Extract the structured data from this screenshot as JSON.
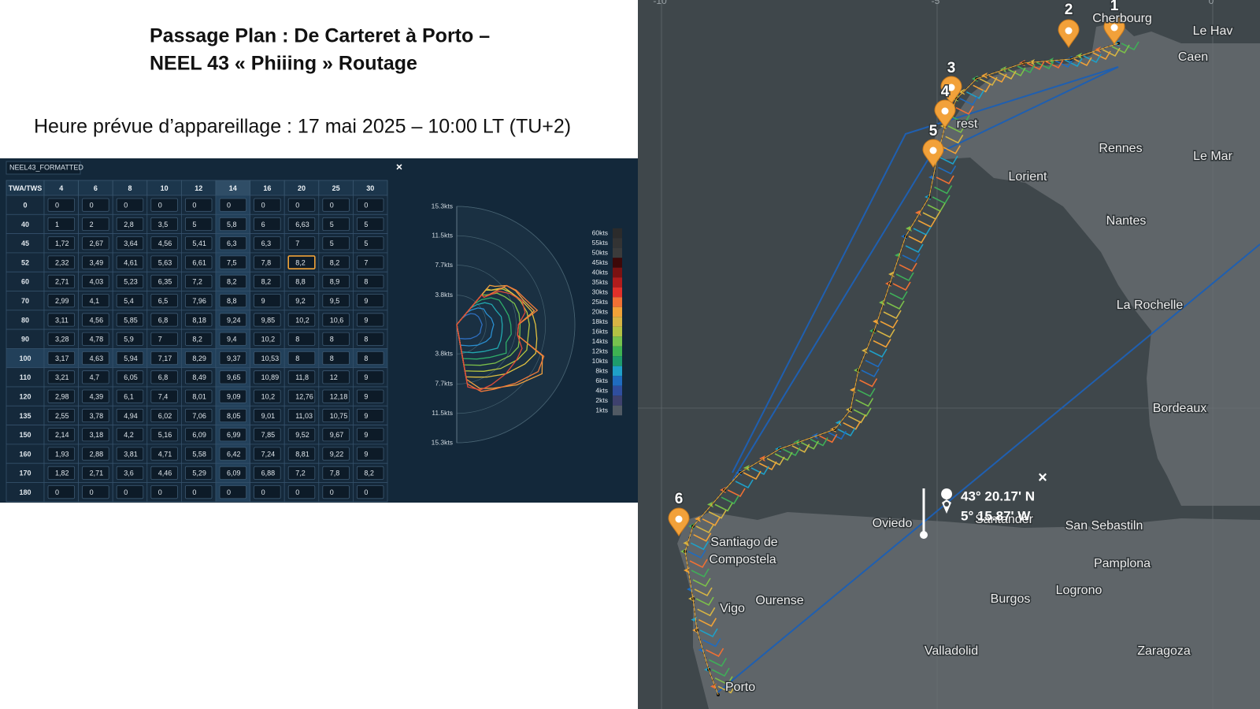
{
  "header": {
    "title_lines": [
      "Passage Plan : De Carteret à Porto –",
      "NEEL 43 « Phiiing » Routage"
    ],
    "subtitle": "Heure prévue d’appareillage : 17 mai 2025 – 10:00 LT (TU+2)"
  },
  "polar_panel": {
    "title": "NEEL43_FORMATTED",
    "close": "×",
    "table": {
      "header": [
        "TWA/TWS",
        "4",
        "6",
        "8",
        "10",
        "12",
        "14",
        "16",
        "20",
        "25",
        "30"
      ],
      "rows": [
        [
          "0",
          "0",
          "0",
          "0",
          "0",
          "0",
          "0",
          "0",
          "0",
          "0",
          "0"
        ],
        [
          "40",
          "1",
          "2",
          "2,8",
          "3,5",
          "5",
          "5,8",
          "6",
          "6,63",
          "5",
          "5"
        ],
        [
          "45",
          "1,72",
          "2,67",
          "3,64",
          "4,56",
          "5,41",
          "6,3",
          "6,3",
          "7",
          "5",
          "5"
        ],
        [
          "52",
          "2,32",
          "3,49",
          "4,61",
          "5,63",
          "6,61",
          "7,5",
          "7,8",
          "8,2",
          "8,2",
          "7"
        ],
        [
          "60",
          "2,71",
          "4,03",
          "5,23",
          "6,35",
          "7,2",
          "8,2",
          "8,2",
          "8,8",
          "8,9",
          "8"
        ],
        [
          "70",
          "2,99",
          "4,1",
          "5,4",
          "6,5",
          "7,96",
          "8,8",
          "9",
          "9,2",
          "9,5",
          "9"
        ],
        [
          "80",
          "3,11",
          "4,56",
          "5,85",
          "6,8",
          "8,18",
          "9,24",
          "9,85",
          "10,2",
          "10,6",
          "9"
        ],
        [
          "90",
          "3,28",
          "4,78",
          "5,9",
          "7",
          "8,2",
          "9,4",
          "10,2",
          "8",
          "8",
          "8"
        ],
        [
          "100",
          "3,17",
          "4,63",
          "5,94",
          "7,17",
          "8,29",
          "9,37",
          "10,53",
          "8",
          "8",
          "8"
        ],
        [
          "110",
          "3,21",
          "4,7",
          "6,05",
          "6,8",
          "8,49",
          "9,65",
          "10,89",
          "11,8",
          "12",
          "9"
        ],
        [
          "120",
          "2,98",
          "4,39",
          "6,1",
          "7,4",
          "8,01",
          "9,09",
          "10,2",
          "12,76",
          "12,18",
          "9"
        ],
        [
          "135",
          "2,55",
          "3,78",
          "4,94",
          "6,02",
          "7,06",
          "8,05",
          "9,01",
          "11,03",
          "10,75",
          "9"
        ],
        [
          "150",
          "2,14",
          "3,18",
          "4,2",
          "5,16",
          "6,09",
          "6,99",
          "7,85",
          "9,52",
          "9,67",
          "9"
        ],
        [
          "160",
          "1,93",
          "2,88",
          "3,81",
          "4,71",
          "5,58",
          "6,42",
          "7,24",
          "8,81",
          "9,22",
          "9"
        ],
        [
          "170",
          "1,82",
          "2,71",
          "3,6",
          "4,46",
          "5,29",
          "6,09",
          "6,88",
          "7,2",
          "7,8",
          "8,2"
        ],
        [
          "180",
          "0",
          "0",
          "0",
          "0",
          "0",
          "0",
          "0",
          "0",
          "0",
          "0"
        ]
      ]
    },
    "polar_chart": {
      "radius_labels": [
        "15.3kts",
        "11.5kts",
        "7.7kts",
        "3.8kts",
        "3.8kts",
        "7.7kts",
        "11.5kts",
        "15.3kts"
      ],
      "curve_colors": [
        "#2f6fc0",
        "#2a8fd0",
        "#22a8b0",
        "#2fae6a",
        "#7cc04a",
        "#b8c840",
        "#e0c040",
        "#f0a040",
        "#f07a3a",
        "#e04a3a"
      ]
    },
    "legend": {
      "items": [
        {
          "label": "60kts",
          "color": "#2b2b2b"
        },
        {
          "label": "55kts",
          "color": "#333333"
        },
        {
          "label": "50kts",
          "color": "#3b3b3b"
        },
        {
          "label": "45kts",
          "color": "#3d0808"
        },
        {
          "label": "40kts",
          "color": "#7a1212"
        },
        {
          "label": "35kts",
          "color": "#b01c1c"
        },
        {
          "label": "30kts",
          "color": "#e0302a"
        },
        {
          "label": "25kts",
          "color": "#f07034"
        },
        {
          "label": "20kts",
          "color": "#f0a238"
        },
        {
          "label": "18kts",
          "color": "#d6b444"
        },
        {
          "label": "16kts",
          "color": "#b2c244"
        },
        {
          "label": "14kts",
          "color": "#76c24e"
        },
        {
          "label": "12kts",
          "color": "#3eb252"
        },
        {
          "label": "10kts",
          "color": "#1e9c6c"
        },
        {
          "label": "8kts",
          "color": "#1fa0c8"
        },
        {
          "label": "6kts",
          "color": "#1f6cc0"
        },
        {
          "label": "4kts",
          "color": "#2f4e9e"
        },
        {
          "label": "2kts",
          "color": "#3e416e"
        },
        {
          "label": "1kts",
          "color": "#515a64"
        }
      ]
    }
  },
  "map": {
    "axis_labels": [
      "-10",
      "-5",
      "0"
    ],
    "cities": [
      "Cherbourg",
      "Le Hav",
      "Caen",
      "Rennes",
      "Le Mar",
      "Lorient",
      "Nantes",
      "La Rochelle",
      "Bordeaux",
      "rest",
      "Oviedo",
      "Santander",
      "San Sebastiln",
      "Pamplona",
      "Santiago de",
      "Compostela",
      "Ourense",
      "Burgos",
      "Logrono",
      "Vigo",
      "Valladolid",
      "Zaragoza",
      "Porto"
    ],
    "waypoints": [
      "1",
      "2",
      "3",
      "4",
      "5",
      "6"
    ],
    "popup": {
      "lat": "43° 20.17' N",
      "lon": "5° 15.87' W",
      "close": "×"
    }
  }
}
